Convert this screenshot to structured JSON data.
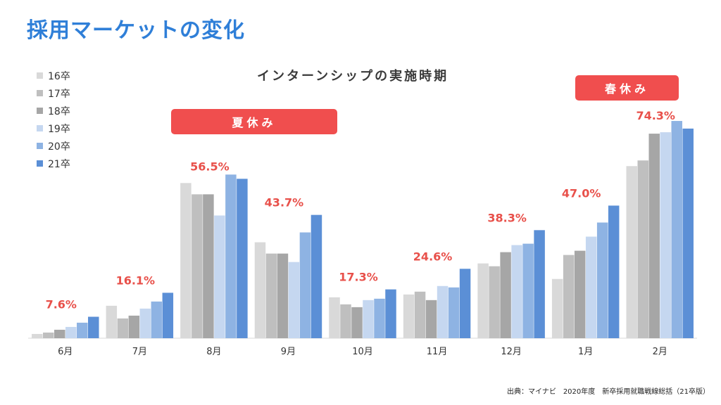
{
  "page": {
    "title": "採用マーケットの変化",
    "source": "出典：マイナビ　2020年度　新卒採用就職戦線総括（21卒版）"
  },
  "annotations": {
    "summer": "夏休み",
    "spring": "春休み"
  },
  "colors": {
    "title": "#2f7fd8",
    "pill": "#f04e4e",
    "value_label": "#e8504a",
    "axis": "#d9d9d9"
  },
  "chart_data": {
    "type": "bar",
    "title": "インターンシップの実施時期",
    "xlabel": "",
    "ylabel": "",
    "ylim": [
      0,
      80
    ],
    "grid": false,
    "legend_position": "top-left",
    "categories": [
      "6月",
      "7月",
      "8月",
      "9月",
      "10月",
      "11月",
      "12月",
      "1月",
      "2月"
    ],
    "series": [
      {
        "name": "16卒",
        "color": "#d9d9d9",
        "values": [
          1.5,
          11.5,
          55.0,
          34.0,
          14.5,
          15.5,
          26.5,
          21.0,
          61.0
        ]
      },
      {
        "name": "17卒",
        "color": "#bfbfbf",
        "values": [
          2.0,
          7.0,
          51.0,
          30.0,
          12.0,
          16.5,
          25.5,
          29.5,
          63.0
        ]
      },
      {
        "name": "18卒",
        "color": "#a6a6a6",
        "values": [
          3.0,
          8.0,
          51.0,
          30.0,
          11.0,
          13.5,
          30.5,
          31.0,
          72.5
        ]
      },
      {
        "name": "19卒",
        "color": "#c5d7f0",
        "values": [
          4.0,
          10.5,
          43.5,
          27.0,
          13.5,
          18.5,
          33.0,
          36.0,
          73.0
        ]
      },
      {
        "name": "20卒",
        "color": "#8eb3e3",
        "values": [
          5.5,
          13.0,
          58.0,
          37.5,
          14.0,
          18.0,
          33.5,
          41.0,
          77.0
        ]
      },
      {
        "name": "21卒",
        "color": "#5b8fd6",
        "values": [
          7.6,
          16.1,
          56.5,
          43.7,
          17.3,
          24.6,
          38.3,
          47.0,
          74.3
        ]
      }
    ],
    "value_labels": [
      "7.6%",
      "16.1%",
      "56.5%",
      "43.7%",
      "17.3%",
      "24.6%",
      "38.3%",
      "47.0%",
      "74.3%"
    ]
  }
}
